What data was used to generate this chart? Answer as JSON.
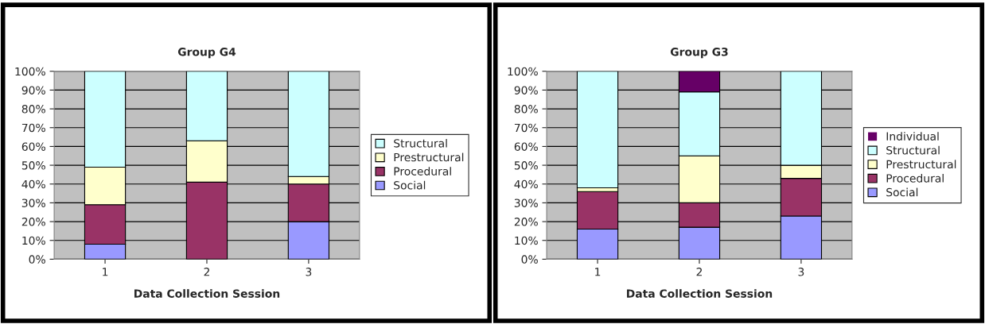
{
  "chart_data": [
    {
      "type": "bar",
      "title": "Group G4",
      "xlabel": "Data Collection Session",
      "categories": [
        "1",
        "2",
        "3"
      ],
      "stacked": true,
      "ylim": [
        0,
        100
      ],
      "yticks": [
        {
          "value": 0,
          "label": "0%"
        },
        {
          "value": 10,
          "label": "10%"
        },
        {
          "value": 20,
          "label": "20%"
        },
        {
          "value": 30,
          "label": "30%"
        },
        {
          "value": 40,
          "label": "40%"
        },
        {
          "value": 50,
          "label": "50%"
        },
        {
          "value": 60,
          "label": "60%"
        },
        {
          "value": 70,
          "label": "70%"
        },
        {
          "value": 80,
          "label": "80%"
        },
        {
          "value": 90,
          "label": "90%"
        },
        {
          "value": 100,
          "label": "100%"
        }
      ],
      "grid": "y",
      "legend": "right",
      "series": [
        {
          "name": "Social",
          "color": "#9999ff",
          "values": [
            8,
            0,
            20
          ]
        },
        {
          "name": "Procedural",
          "color": "#993366",
          "values": [
            21,
            41,
            20
          ]
        },
        {
          "name": "Prestructural",
          "color": "#ffffcc",
          "values": [
            20,
            22,
            4
          ]
        },
        {
          "name": "Structural",
          "color": "#ccffff",
          "values": [
            51,
            37,
            56
          ]
        }
      ]
    },
    {
      "type": "bar",
      "title": "Group G3",
      "xlabel": "Data Collection Session",
      "categories": [
        "1",
        "2",
        "3"
      ],
      "stacked": true,
      "ylim": [
        0,
        100
      ],
      "yticks": [
        {
          "value": 0,
          "label": "0%"
        },
        {
          "value": 10,
          "label": "10%"
        },
        {
          "value": 20,
          "label": "20%"
        },
        {
          "value": 30,
          "label": "30%"
        },
        {
          "value": 40,
          "label": "40%"
        },
        {
          "value": 50,
          "label": "50%"
        },
        {
          "value": 60,
          "label": "60%"
        },
        {
          "value": 70,
          "label": "70%"
        },
        {
          "value": 80,
          "label": "80%"
        },
        {
          "value": 90,
          "label": "90%"
        },
        {
          "value": 100,
          "label": "100%"
        }
      ],
      "grid": "y",
      "legend": "right",
      "series": [
        {
          "name": "Social",
          "color": "#9999ff",
          "values": [
            16,
            17,
            23
          ]
        },
        {
          "name": "Procedural",
          "color": "#993366",
          "values": [
            20,
            13,
            20
          ]
        },
        {
          "name": "Prestructural",
          "color": "#ffffcc",
          "values": [
            2,
            25,
            7
          ]
        },
        {
          "name": "Structural",
          "color": "#ccffff",
          "values": [
            62,
            34,
            50
          ]
        },
        {
          "name": "Individual",
          "color": "#660066",
          "values": [
            0,
            11,
            0
          ]
        }
      ]
    }
  ]
}
